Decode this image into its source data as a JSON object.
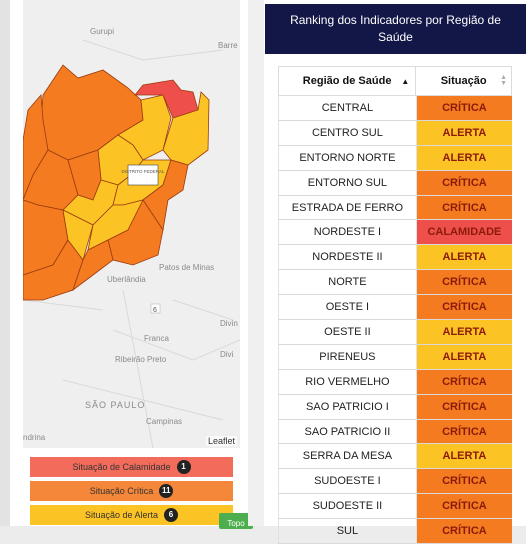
{
  "header": {
    "title": "Ranking dos Indicadores por Região de Saúde"
  },
  "table": {
    "columns": [
      "Região de Saúde",
      "Situação"
    ],
    "rows": [
      {
        "region": "CENTRAL",
        "status": "CRÍTICA",
        "level": "critica"
      },
      {
        "region": "CENTRO SUL",
        "status": "ALERTA",
        "level": "alerta"
      },
      {
        "region": "ENTORNO NORTE",
        "status": "ALERTA",
        "level": "alerta"
      },
      {
        "region": "ENTORNO SUL",
        "status": "CRÍTICA",
        "level": "critica"
      },
      {
        "region": "ESTRADA DE FERRO",
        "status": "CRÍTICA",
        "level": "critica"
      },
      {
        "region": "NORDESTE I",
        "status": "CALAMIDADE",
        "level": "calamidade"
      },
      {
        "region": "NORDESTE II",
        "status": "ALERTA",
        "level": "alerta"
      },
      {
        "region": "NORTE",
        "status": "CRÍTICA",
        "level": "critica"
      },
      {
        "region": "OESTE I",
        "status": "CRÍTICA",
        "level": "critica"
      },
      {
        "region": "OESTE II",
        "status": "ALERTA",
        "level": "alerta"
      },
      {
        "region": "PIRENEUS",
        "status": "ALERTA",
        "level": "alerta"
      },
      {
        "region": "RIO VERMELHO",
        "status": "CRÍTICA",
        "level": "critica"
      },
      {
        "region": "SAO PATRICIO I",
        "status": "CRÍTICA",
        "level": "critica"
      },
      {
        "region": "SAO PATRICIO II",
        "status": "CRÍTICA",
        "level": "critica"
      },
      {
        "region": "SERRA DA MESA",
        "status": "ALERTA",
        "level": "alerta"
      },
      {
        "region": "SUDOESTE I",
        "status": "CRÍTICA",
        "level": "critica"
      },
      {
        "region": "SUDOESTE II",
        "status": "CRÍTICA",
        "level": "critica"
      },
      {
        "region": "SUL",
        "status": "CRÍTICA",
        "level": "critica"
      }
    ]
  },
  "map": {
    "place_labels": [
      "Gurupi",
      "Barre",
      "Patos de Minas",
      "Uberlândia",
      "Franca",
      "Ribeirão Preto",
      "SÃO PAULO",
      "Campinas",
      "Divin",
      "Divi",
      "ndrina",
      "6"
    ],
    "federal_district_label": "DISTRITO FEDERAL",
    "attribution": "Leaflet"
  },
  "legend": [
    {
      "label": "Situação de Calamidade",
      "count": "1",
      "color": "#f26b5b"
    },
    {
      "label": "Situação Crítica",
      "count": "11",
      "color": "#f4873a"
    },
    {
      "label": "Situação de Alerta",
      "count": "6",
      "color": "#fcc324"
    }
  ],
  "topo_button": "Topo",
  "colors": {
    "critica": "#f47b20",
    "alerta": "#fcc324",
    "calamidade": "#ef4f4a",
    "header": "#131747"
  }
}
